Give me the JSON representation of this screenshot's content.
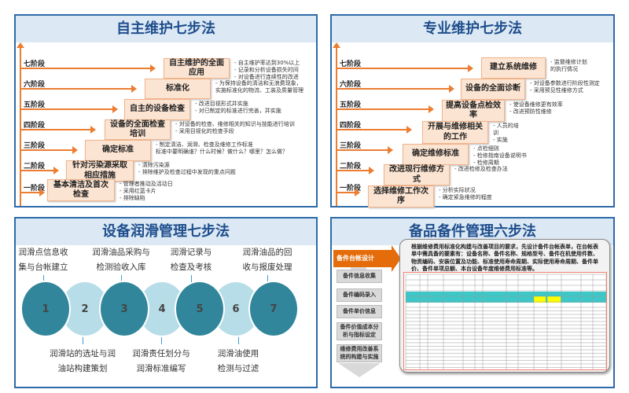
{
  "panels": {
    "autonomous": {
      "title": "自主维护七步法",
      "stages": [
        "七阶段",
        "六阶段",
        "五阶段",
        "四阶段",
        "三阶段",
        "二阶段",
        "一阶段"
      ],
      "steps": [
        "自主维护的全面应用",
        "标准化",
        "自主的设备检查",
        "设备的全面检查培训",
        "确定标准",
        "针对污染源采取相应措施",
        "基本清洁及首次检查"
      ],
      "notes": [
        "- 自主维护率达到30%以上\n- 记录和分析设备损失时间\n- 对设备进行连续性的改进",
        "- 为保持设备的清洁和无浪费现象，\n实施标准化的物流、工装及质量管理",
        "- 改进目视形式并实施\n- 对已制定的标准进行完善，并实施",
        "- 对设备的检查、维修相关的知识与技能进行培训\n- 采用目视化的检查手段",
        "- 制定清洁、润滑、检查及维修工作标准\n标准中要明确谁？什么时候？做什么？哪里？怎么做？",
        "- 清除污染源\n- 排除维护及检查过程中发现的重点问题",
        "- 管理者推动及活动日\n- 采用红蓝卡片\n- 排除缺陷"
      ]
    },
    "professional": {
      "title": "专业维护七步法",
      "stages": [
        "七阶段",
        "六阶段",
        "五阶段",
        "四阶段",
        "三阶段",
        "二阶段",
        "一阶段"
      ],
      "steps": [
        "建立系统维修",
        "设备的全面诊断",
        "提高设备点检效率",
        "开展与维修相关的工作",
        "确定维修标准",
        "改进现行维修方式",
        "选择维修工作次序"
      ],
      "notes": [
        "- 监督维修计划\n的执行情况",
        "- 对设备参数进行阶段性测定\n- 采用预见性维修方式",
        "- 使设备维修更有效率\n- 改进预防性维修",
        "- 人员的培\n训\n- 实施",
        "- 点检细则\n- 检修指南设备说明书\n- 检修周期",
        "- 改进检修及检查办法",
        "- 分析实际状况\n- 确定紧急维修的程度"
      ]
    },
    "lubrication": {
      "title": "设备润滑管理七步法",
      "numbers": [
        "1",
        "2",
        "3",
        "4",
        "5",
        "6",
        "7"
      ],
      "top_labels": [
        "润滑点信息收\n集与台帐建立",
        "润滑油品采购与\n检测验收入库",
        "润滑记录与\n检查及考核",
        "润滑油品的回\n收与报废处理"
      ],
      "bottom_labels": [
        "润滑站的选址与润\n油站构建策划",
        "润滑责任划分与\n润滑标准编写",
        "润滑油使用\n检测与过滤"
      ]
    },
    "spares": {
      "title": "备品备件管理六步法",
      "active_step": "备件台帐设计",
      "steps": [
        "备件信息收集",
        "备件编码录入",
        "备件单价信息",
        "备件价值成本分\n析与指标设定",
        "维修费用改善系\n统的构建与实施"
      ],
      "description": "根据维修费用标准化构建与改善项目的要求，先设计备件台帐表单，在台帐表单中需具备的要素有：设备名称、备件名称、规格型号、备件在机使用件数、物资编码、安装位置及功能、标准使用寿命周期、实际使用寿命周期、备件单价、备件单项总额、本台设备年度维修费用标准等。"
    }
  },
  "colors": {
    "accent": "#ed7d31",
    "panel_border": "#2e6aa8",
    "title_bg": "#dce9f5",
    "teal_dark": "#31869b",
    "teal_light": "#b7dde8"
  }
}
